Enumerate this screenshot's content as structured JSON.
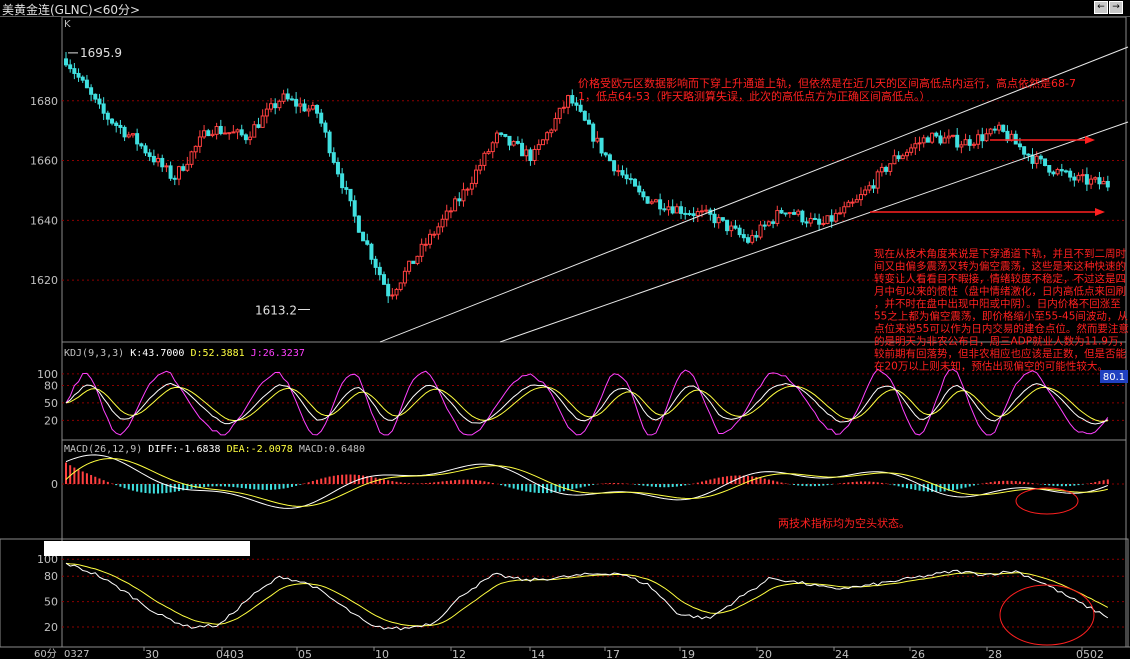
{
  "window": {
    "title": "美黄金连(GLNC)<60分>",
    "period_label": "60分",
    "buttons": [
      "←",
      "→",
      "≡"
    ]
  },
  "colors": {
    "background": "#000000",
    "up": "#ff4040",
    "down": "#40e0e0",
    "grid": "#8b0000",
    "annotation": "#ff2020",
    "kdj_k": "#ffffff",
    "kdj_d": "#ffff40",
    "kdj_j": "#ff40ff"
  },
  "chart_data": [
    {
      "type": "candlestick",
      "panel": "price",
      "label": "K",
      "ylim": [
        1602,
        1706
      ],
      "yticks": [
        1620,
        1640,
        1660,
        1680
      ],
      "high_label": "1695.9",
      "low_label": "1613.2",
      "x_ticks": [
        "0327",
        "30",
        "0403",
        "05",
        "10",
        "12",
        "14",
        "17",
        "19",
        "20",
        "24",
        "26",
        "28",
        "0502"
      ],
      "key_closes": [
        1694,
        1676,
        1666,
        1654,
        1671,
        1668,
        1681,
        1676,
        1642,
        1615,
        1632,
        1648,
        1668,
        1661,
        1681,
        1662,
        1648,
        1644,
        1641,
        1633,
        1644,
        1638,
        1646,
        1660,
        1668,
        1666,
        1670,
        1660,
        1654,
        1652
      ],
      "annotations": {
        "top": "价格受欧元区数据影响而下穿上升通道上轨，但依然是在近几天的区间高低点内运行，高点依然是68-71，低点64-53（昨天略测算失误，此次的高低点方为正确区间高低点。）",
        "right": "现在从技术角度来说是下穿通道下轨，并且不到二周时间又由偏多震荡又转为偏空震荡，这些是来这种快速的转变让人看看目不暇接，情绪较度不稳定，不过这是四月中旬以来的惯性（盘中情绪激化，日内高低点来回刷，并不时在盘中出现中阳或中阴）。日内价格不回涨至55之上都为偏空震荡，即价格缩小至55-45间波动，从点位来说55可以作为日内交易的建仓点位。然而要注意的是明天为非农公布日，周三ADP就业人数为11.9万，较前期有回落势，但非农相应也应该是正数，但是否能在20万以上则未知，预估出现偏空的可能性较大。"
      }
    },
    {
      "type": "line",
      "panel": "KDJ",
      "header": "KDJ(9,3,3)",
      "series": [
        {
          "name": "K",
          "label": "K:43.7000",
          "value": 43.7
        },
        {
          "name": "D",
          "label": "D:52.3881",
          "value": 52.3881
        },
        {
          "name": "J",
          "label": "J:26.3237",
          "value": 26.3237
        }
      ],
      "yticks": [
        20,
        50,
        80,
        100
      ],
      "badge": "80.1"
    },
    {
      "type": "bar",
      "panel": "MACD",
      "header": "MACD(26,12,9)",
      "series": [
        {
          "name": "DIFF",
          "label": "DIFF:-1.6838",
          "value": -1.6838
        },
        {
          "name": "DEA",
          "label": "DEA:-2.0078",
          "value": -2.0078
        },
        {
          "name": "MACD",
          "label": "MACD:0.6480",
          "value": 0.648
        }
      ],
      "yticks": [
        0
      ],
      "annotation": "两技术指标均为空头状态。"
    },
    {
      "type": "line",
      "panel": "lower",
      "yticks": [
        20,
        50,
        80,
        100
      ],
      "key_values": [
        95,
        82,
        60,
        35,
        20,
        22,
        55,
        80,
        70,
        45,
        20,
        18,
        25,
        60,
        82,
        75,
        78,
        82,
        84,
        70,
        35,
        30,
        55,
        78,
        72,
        65,
        68,
        74,
        80,
        86,
        82,
        86,
        70,
        50,
        32
      ]
    }
  ]
}
